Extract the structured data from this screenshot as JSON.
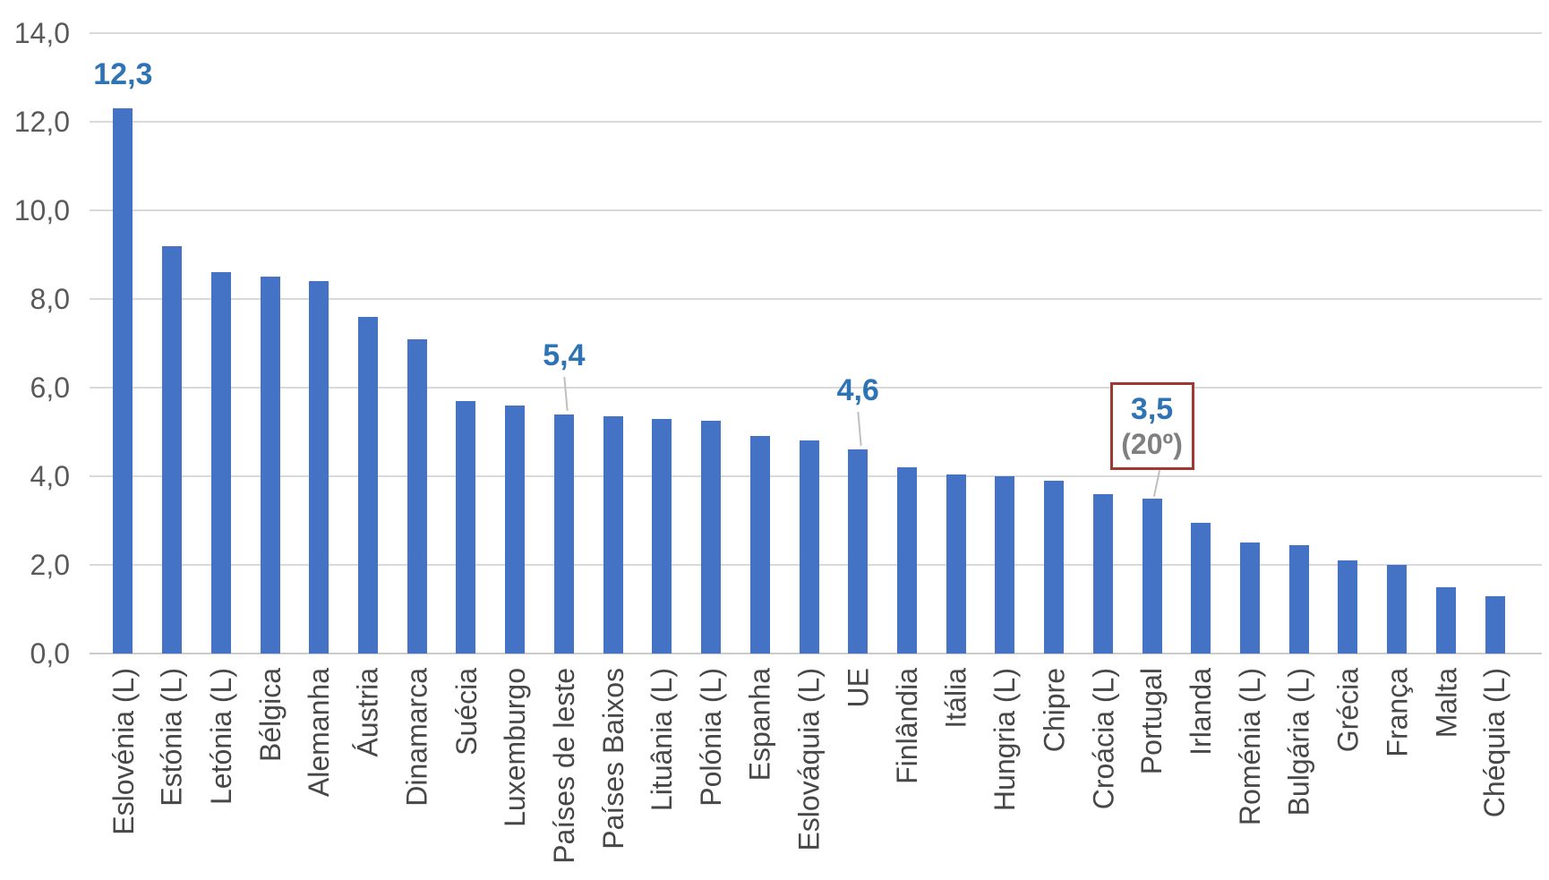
{
  "chart_data": {
    "type": "bar",
    "title": "",
    "xlabel": "",
    "ylabel": "",
    "categories": [
      "Eslovénia (L)",
      "Estónia (L)",
      "Letónia (L)",
      "Bélgica",
      "Alemanha",
      "Áustria",
      "Dinamarca",
      "Suécia",
      "Luxemburgo",
      "Países de leste",
      "Países Baixos",
      "Lituânia (L)",
      "Polónia (L)",
      "Espanha",
      "Eslováquia (L)",
      "UE",
      "Finlândia",
      "Itália",
      "Hungria (L)",
      "Chipre",
      "Croácia (L)",
      "Portugal",
      "Irlanda",
      "Roménia (L)",
      "Bulgária (L)",
      "Grécia",
      "França",
      "Malta",
      "Chéquia (L)"
    ],
    "values": [
      12.3,
      9.2,
      8.6,
      8.5,
      8.4,
      7.6,
      7.1,
      5.7,
      5.6,
      5.4,
      5.35,
      5.3,
      5.25,
      4.9,
      4.8,
      4.6,
      4.2,
      4.05,
      4.0,
      3.9,
      3.6,
      3.5,
      2.95,
      2.5,
      2.45,
      2.1,
      2.0,
      1.5,
      1.3
    ],
    "ylim": [
      0,
      14
    ],
    "ytick_step": 2,
    "ytick_labels": [
      "0,0",
      "2,0",
      "4,0",
      "6,0",
      "8,0",
      "10,0",
      "12,0",
      "14,0"
    ],
    "grid": true,
    "legend": "none",
    "bar_color": "#4472C4",
    "annotations": [
      {
        "index": 0,
        "category": "Eslovénia (L)",
        "label": "12,3",
        "sublabel": "",
        "leader": false,
        "boxed": false
      },
      {
        "index": 9,
        "category": "Países de leste",
        "label": "5,4",
        "sublabel": "",
        "leader": true,
        "boxed": false
      },
      {
        "index": 15,
        "category": "UE",
        "label": "4,6",
        "sublabel": "",
        "leader": true,
        "boxed": false
      },
      {
        "index": 21,
        "category": "Portugal",
        "label": "3,5",
        "sublabel": "(20º)",
        "leader": true,
        "boxed": true
      }
    ],
    "colors": {
      "bar": "#4472C4",
      "axis_text": "#595959",
      "category_text": "#474747",
      "gridline": "#D9D9D9",
      "baseline": "#CBCBCB",
      "data_label": "#2E74B5",
      "sublabel_text": "#7F7F7F",
      "box_border": "#9E3A33",
      "leader_line": "#BFBFBF"
    }
  }
}
